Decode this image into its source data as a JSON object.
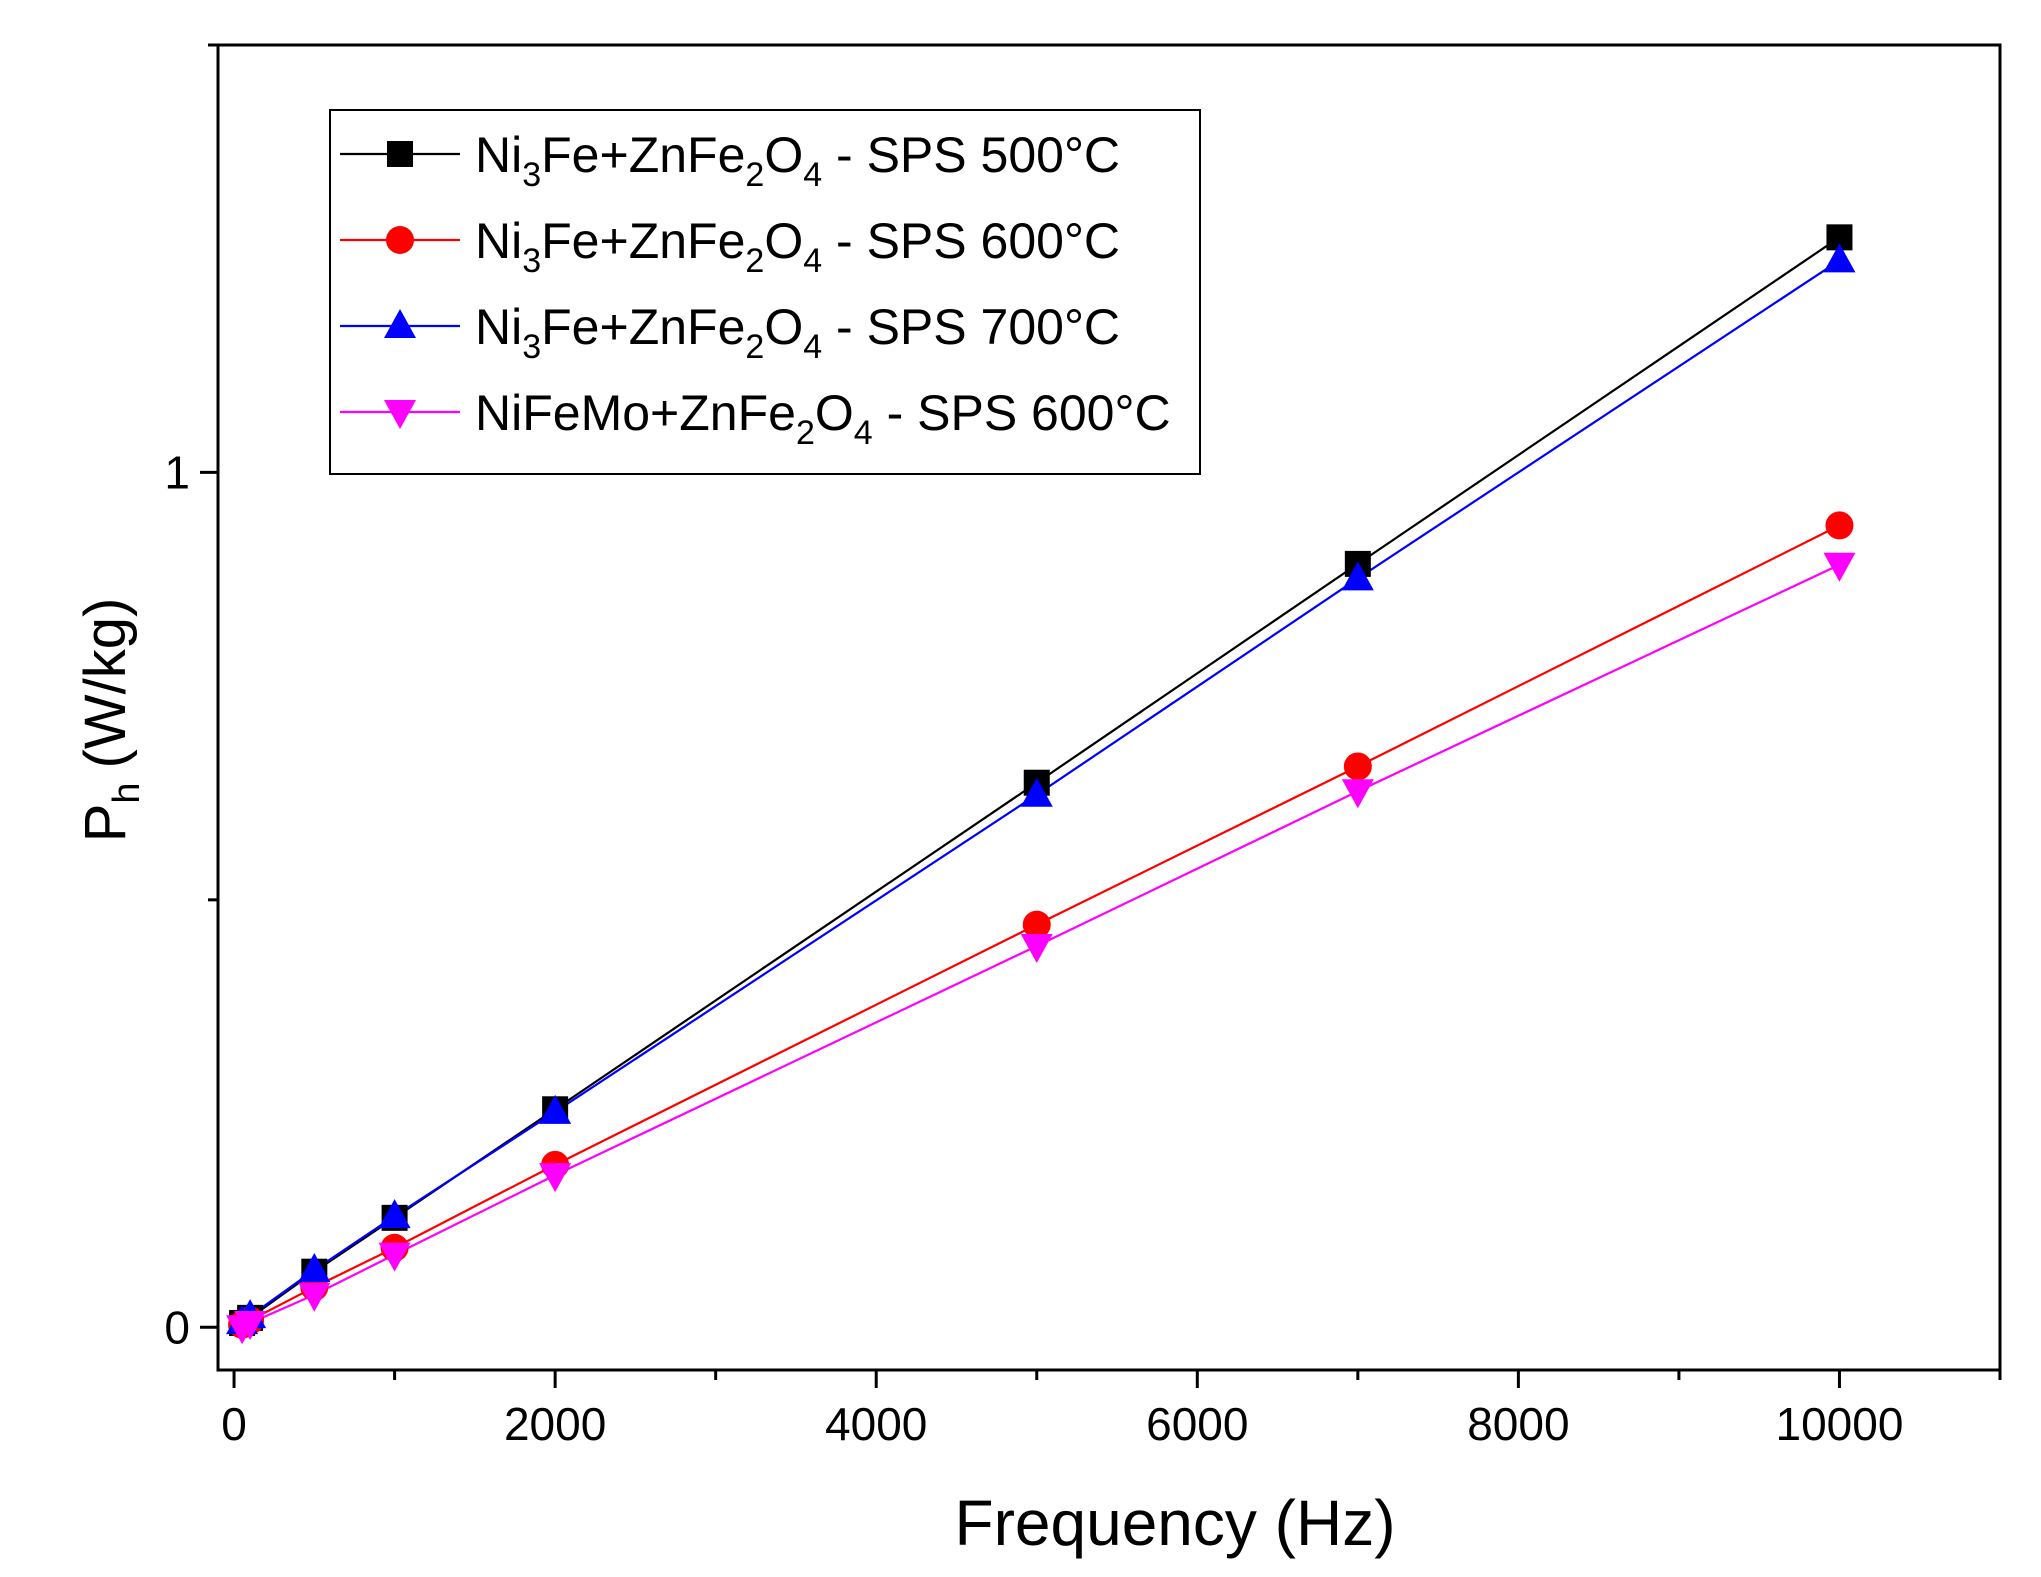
{
  "chart_data": {
    "type": "line",
    "title": "",
    "xlabel": "Frequency (Hz)",
    "ylabel_main": "P",
    "ylabel_sub": "h",
    "ylabel_unit": "(W/kg)",
    "xlim": [
      -100,
      11000
    ],
    "ylim": [
      -0.05,
      1.5
    ],
    "x_ticks": [
      0,
      2000,
      4000,
      6000,
      8000,
      10000
    ],
    "x_tick_labels": [
      "0",
      "2000",
      "4000",
      "6000",
      "8000",
      "10000"
    ],
    "y_ticks": [
      0,
      1
    ],
    "y_tick_labels": [
      "0",
      "1"
    ],
    "grid": false,
    "legend_position": "top-left",
    "x": [
      50,
      100,
      500,
      1000,
      2000,
      5000,
      7000,
      10000
    ],
    "series": [
      {
        "name": "Ni3Fe+ZnFe2O4 - SPS 500°C",
        "legend": {
          "a": "Ni",
          "a_sub": "3",
          "b": "Fe+ZnFe",
          "b_sub": "2",
          "c": "O",
          "c_sub": "4",
          "d": " - SPS 500°C"
        },
        "color": "#000000",
        "marker": "square",
        "values": [
          0.005,
          0.011,
          0.065,
          0.128,
          0.255,
          0.637,
          0.893,
          1.275
        ]
      },
      {
        "name": "Ni3Fe+ZnFe2O4 - SPS 600°C",
        "legend": {
          "a": "Ni",
          "a_sub": "3",
          "b": "Fe+ZnFe",
          "b_sub": "2",
          "c": "O",
          "c_sub": "4",
          "d": " - SPS 600°C"
        },
        "color": "#ff0000",
        "marker": "circle",
        "values": [
          0.003,
          0.008,
          0.047,
          0.093,
          0.19,
          0.471,
          0.656,
          0.938
        ]
      },
      {
        "name": "Ni3Fe+ZnFe2O4 - SPS 700°C",
        "legend": {
          "a": "Ni",
          "a_sub": "3",
          "b": "Fe+ZnFe",
          "b_sub": "2",
          "c": "O",
          "c_sub": "4",
          "d": " - SPS 700°C"
        },
        "color": "#0000ff",
        "marker": "triangle-up",
        "values": [
          0.006,
          0.013,
          0.067,
          0.13,
          0.252,
          0.623,
          0.876,
          1.248
        ]
      },
      {
        "name": "NiFeMo+ZnFe2O4 - SPS 600°C",
        "legend": {
          "a": "NiFeMo+ZnFe",
          "a_sub": "2",
          "b": "O",
          "b_sub": "4",
          "c": "",
          "c_sub": "",
          "d": " - SPS 600°C"
        },
        "color": "#ff00ff",
        "marker": "triangle-down",
        "values": [
          0.0,
          0.005,
          0.038,
          0.085,
          0.178,
          0.446,
          0.627,
          0.892
        ]
      }
    ]
  }
}
